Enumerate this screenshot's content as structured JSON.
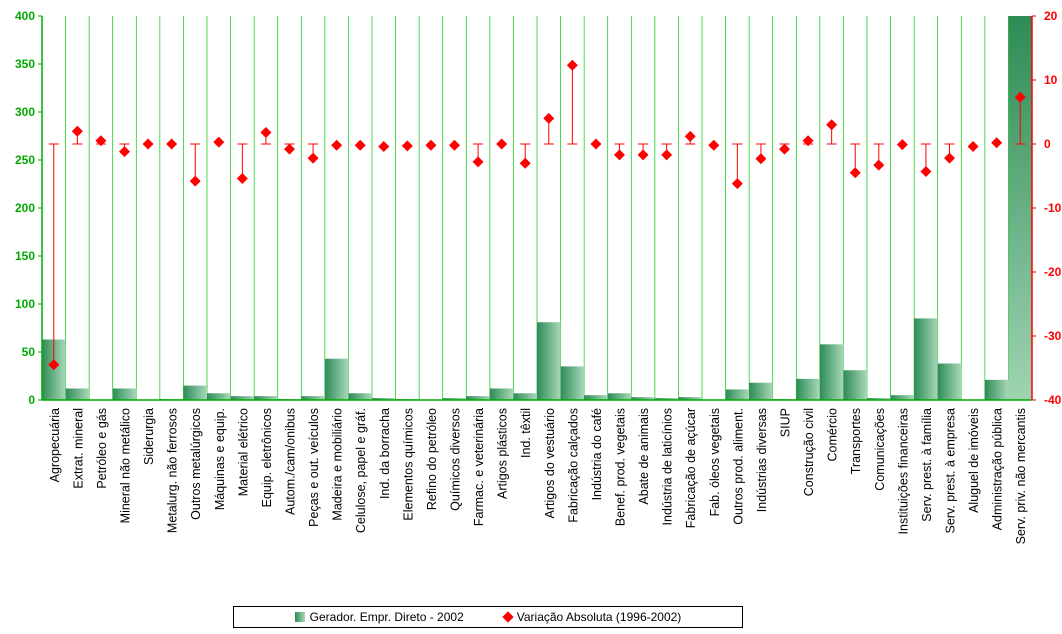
{
  "chart_data": {
    "type": "bar",
    "categories": [
      "Agropecuária",
      "Extrat. mineral",
      "Petróleo e gás",
      "Mineral não metálico",
      "Siderurgia",
      "Metalurg. não ferrosos",
      "Outros metalúrgicos",
      "Máquinas e equip.",
      "Material elétrico",
      "Equip. eletrônicos",
      "Autom./cam/onibus",
      "Peças e out. veículos",
      "Madeira e mobiliário",
      "Celulose, papel e gráf.",
      "Ind. da borracha",
      "Elementos químicos",
      "Refino do petróleo",
      "Químicos diversos",
      "Farmac. e veterinária",
      "Artigos plásticos",
      "Ind. têxtil",
      "Artigos do vestuário",
      "Fabricação calçados",
      "Indústria do café",
      "Benef. prod. vegetais",
      "Abate de animais",
      "Indústria de laticínios",
      "Fabricação de açúcar",
      "Fab. óleos vegetais",
      "Outros prod. aliment.",
      "Indústrias diversas",
      "SIUP",
      "Construção civil",
      "Comércio",
      "Transportes",
      "Comunicações",
      "Instituições financeiras",
      "Serv. prest. à família",
      "Serv. prest. à empresa",
      "Aluguel de imóveis",
      "Administração pública",
      "Serv. priv. não mercantis"
    ],
    "series": [
      {
        "name": "Gerador. Empr. Direto - 2002",
        "axis": "left",
        "type": "bar",
        "values": [
          63,
          12,
          0,
          12,
          0,
          1,
          15,
          7,
          4,
          4,
          1,
          4,
          43,
          7,
          2,
          1,
          0,
          2,
          4,
          12,
          7,
          81,
          35,
          5,
          7,
          3,
          2,
          3,
          0,
          11,
          18,
          1,
          22,
          58,
          31,
          2,
          5,
          85,
          38,
          0,
          21,
          400
        ]
      },
      {
        "name": "Variação Absoluta (1996-2002)",
        "axis": "right",
        "type": "scatter",
        "values": [
          -34.5,
          2,
          0.5,
          -1.2,
          0,
          0,
          -5.8,
          0.3,
          -5.4,
          1.8,
          -0.8,
          -2.2,
          -0.2,
          -0.2,
          -0.4,
          -0.3,
          -0.2,
          -0.2,
          -2.8,
          0,
          -3,
          4,
          12.3,
          0,
          -1.7,
          -1.7,
          -1.7,
          1.2,
          -0.2,
          -6.2,
          -2.3,
          -0.8,
          0.5,
          3,
          -4.5,
          -3.3,
          -0.1,
          -4.3,
          -2.2,
          -0.4,
          0.2,
          7.3
        ]
      }
    ],
    "ylim": [
      0,
      400
    ],
    "y2lim": [
      -40,
      20
    ],
    "yticks": [
      "0",
      "50",
      "100",
      "150",
      "200",
      "250",
      "300",
      "350",
      "400"
    ],
    "y2ticks": [
      "-40",
      "-30",
      "-20",
      "-10",
      "0",
      "10",
      "20"
    ],
    "grid": "vertical",
    "legend_position": "bottom"
  },
  "legend": {
    "bar_label": "Gerador. Empr. Direto - 2002",
    "point_label": "Variação Absoluta (1996-2002)"
  },
  "colors": {
    "axis_left": "#00aa00",
    "axis_right": "#ff0000",
    "grid": "#00cc00",
    "bar_dark": "#2e8b57",
    "bar_light": "#a8d8b9",
    "marker": "#ff0000"
  }
}
